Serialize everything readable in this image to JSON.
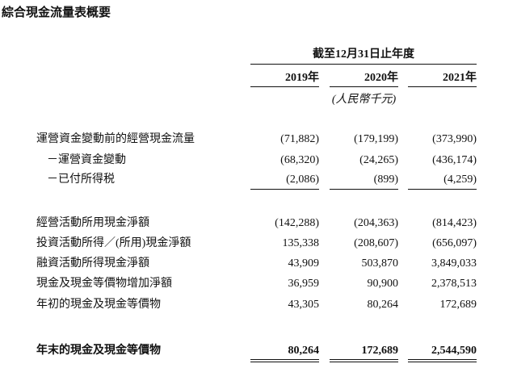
{
  "title": "綜合現金流量表概要",
  "header": {
    "period": "截至12月31日止年度",
    "years": [
      "2019年",
      "2020年",
      "2021年"
    ],
    "unit": "(人民幣千元)"
  },
  "rows": [
    {
      "label": "運營資金變動前的經營現金流量",
      "values": [
        "(71,882)",
        "(179,199)",
        "(373,990)"
      ]
    },
    {
      "label": "－運營資金變動",
      "values": [
        "(68,320)",
        "(24,265)",
        "(436,174)"
      ]
    },
    {
      "label": "－已付所得税",
      "values": [
        "(2,086)",
        "(899)",
        "(4,259)"
      ]
    },
    {
      "label": "經營活動所用現金淨額",
      "values": [
        "(142,288)",
        "(204,363)",
        "(814,423)"
      ]
    },
    {
      "label": "投資活動所得／(所用)現金淨額",
      "values": [
        "135,338",
        "(208,607)",
        "(656,097)"
      ]
    },
    {
      "label": "融資活動所得現金淨額",
      "values": [
        "43,909",
        "503,870",
        "3,849,033"
      ]
    },
    {
      "label": "現金及現金等價物增加淨額",
      "values": [
        "36,959",
        "90,900",
        "2,378,513"
      ]
    },
    {
      "label": "年初的現金及現金等價物",
      "values": [
        "43,305",
        "80,264",
        "172,689"
      ]
    },
    {
      "label": "年末的現金及現金等價物",
      "values": [
        "80,264",
        "172,689",
        "2,544,590"
      ]
    }
  ]
}
